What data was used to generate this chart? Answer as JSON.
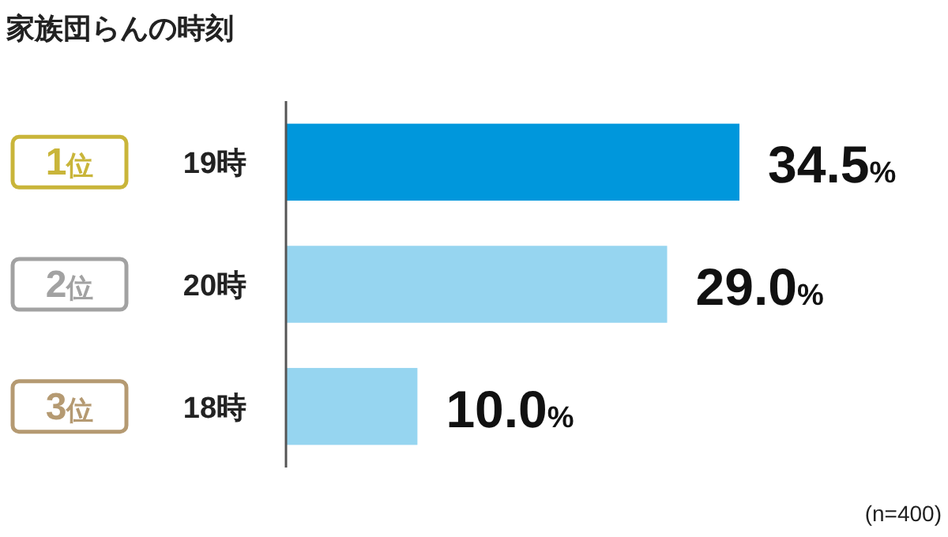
{
  "chart_data": {
    "type": "bar",
    "orientation": "horizontal",
    "title": "家族団らんの時刻",
    "categories": [
      "19時",
      "20時",
      "18時"
    ],
    "values": [
      34.5,
      29.0,
      10.0
    ],
    "colors": [
      "#0097dc",
      "#96d5f0",
      "#96d5f0"
    ],
    "value_labels": [
      "34.5%",
      "29.0%",
      "10.0%"
    ],
    "annotations": [
      "1位",
      "2位",
      "3位",
      "(n=400)"
    ]
  }
}
